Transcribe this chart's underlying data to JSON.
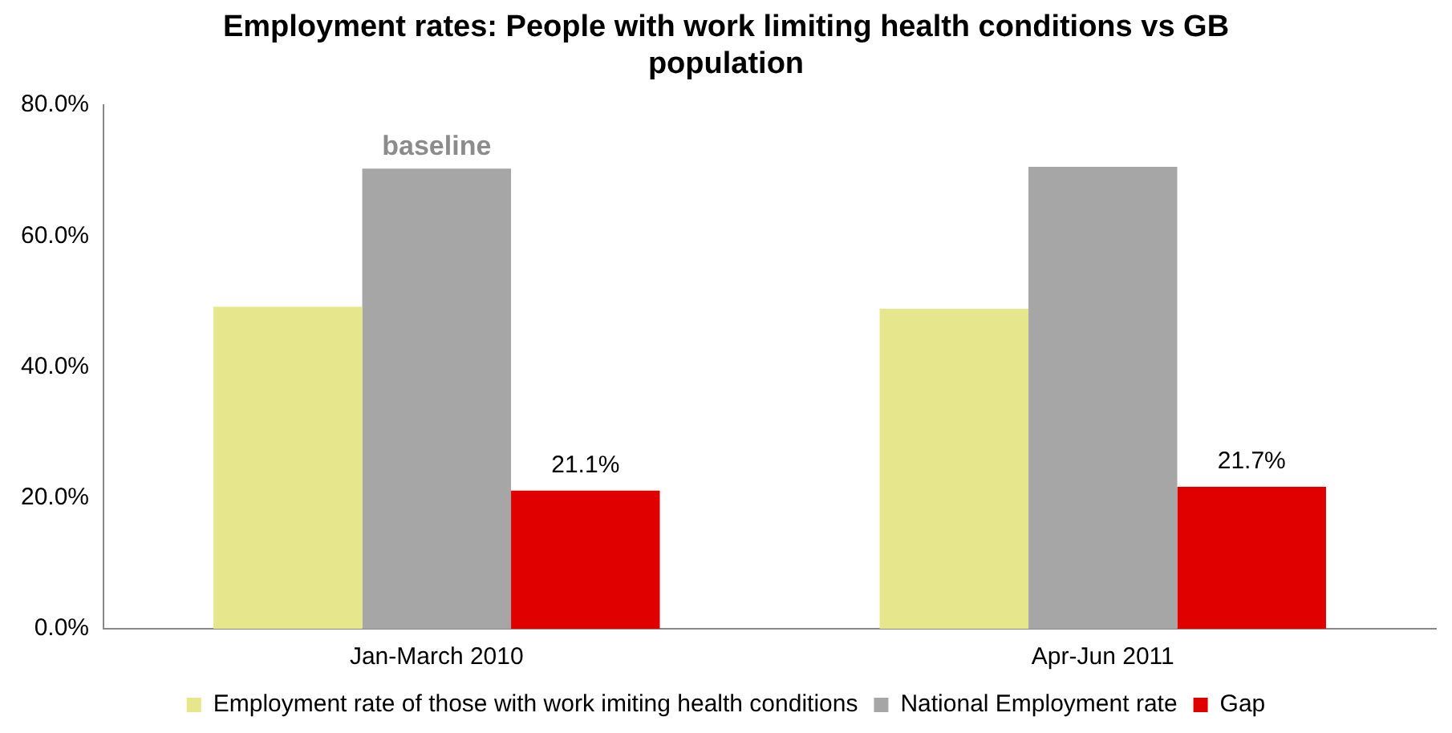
{
  "chart_data": {
    "type": "bar",
    "title": "Employment rates: People with work limiting health conditions vs GB population",
    "categories": [
      "Jan-March 2010",
      "Apr-Jun 2011"
    ],
    "series": [
      {
        "name": "Employment rate of those with work imiting health conditions",
        "color": "#e6e68c",
        "values": [
          49.2,
          48.9
        ]
      },
      {
        "name": "National Employment rate",
        "color": "#a6a6a6",
        "values": [
          70.3,
          70.6
        ]
      },
      {
        "name": "Gap",
        "color": "#e00000",
        "values": [
          21.1,
          21.7
        ],
        "value_labels": [
          "21.1%",
          "21.7%"
        ]
      }
    ],
    "ylim": [
      0,
      80
    ],
    "yticks": [
      {
        "value": 0,
        "label": "0.0%"
      },
      {
        "value": 20,
        "label": "20.0%"
      },
      {
        "value": 40,
        "label": "40.0%"
      },
      {
        "value": 60,
        "label": "60.0%"
      },
      {
        "value": 80,
        "label": "80.0%"
      }
    ],
    "annotations": [
      {
        "text": "baseline",
        "x": "Jan-March 2010",
        "y": 70.3
      }
    ],
    "grid": false,
    "legend": "bottom"
  }
}
